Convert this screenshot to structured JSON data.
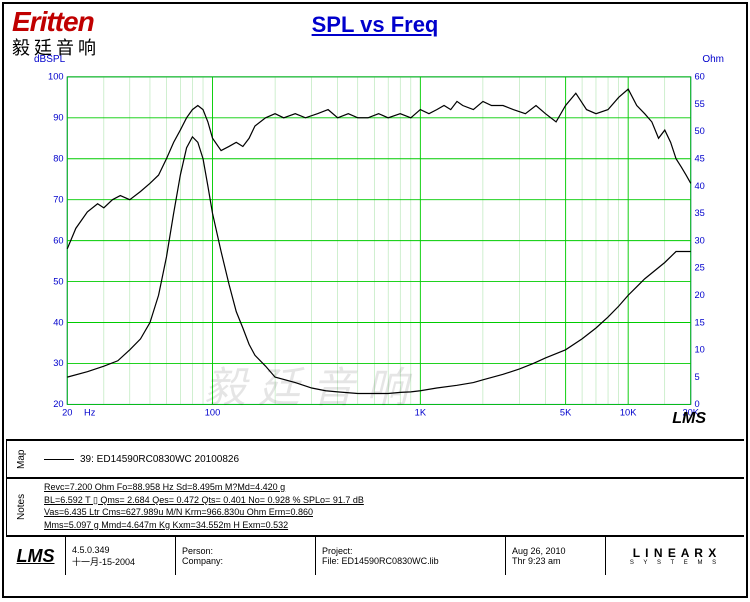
{
  "logo": {
    "main": "Eritten",
    "sub": "毅廷音响"
  },
  "title": "SPL vs Freq",
  "watermark": "毅廷音响",
  "chart_mark": "LMS",
  "axes": {
    "left_unit": "dBSPL",
    "right_unit": "Ohm",
    "x_unit": "Hz",
    "x_min": 20,
    "x_max": 20000,
    "x_scale": "log",
    "x_ticks": [
      20,
      100,
      1000,
      5000,
      10000,
      20000
    ],
    "x_tick_labels": [
      "20",
      "100",
      "1K",
      "5K",
      "10K",
      "20K"
    ],
    "x_minor": [
      30,
      40,
      50,
      60,
      70,
      80,
      90,
      200,
      300,
      400,
      500,
      600,
      700,
      800,
      900,
      2000,
      3000,
      4000,
      6000,
      7000,
      8000,
      9000,
      15000
    ],
    "y_left_min": 20,
    "y_left_max": 100,
    "y_left_step": 10,
    "y_right_min": 0,
    "y_right_max": 60,
    "y_right_step": 5,
    "axis_color": "#0000cc",
    "grid_color": "#00cc00",
    "grid_color_minor": "#99dd99",
    "line_color": "#000000",
    "background_color": "#ffffff",
    "axis_fontsize": 10
  },
  "series": {
    "spl": {
      "type": "line",
      "color": "#000000",
      "points": [
        [
          20,
          58
        ],
        [
          22,
          63
        ],
        [
          25,
          67
        ],
        [
          28,
          69
        ],
        [
          30,
          68
        ],
        [
          33,
          70
        ],
        [
          36,
          71
        ],
        [
          40,
          70
        ],
        [
          45,
          72
        ],
        [
          50,
          74
        ],
        [
          55,
          76
        ],
        [
          60,
          80
        ],
        [
          65,
          84
        ],
        [
          70,
          87
        ],
        [
          75,
          90
        ],
        [
          80,
          92
        ],
        [
          85,
          93
        ],
        [
          90,
          92
        ],
        [
          95,
          89
        ],
        [
          100,
          85
        ],
        [
          110,
          82
        ],
        [
          120,
          83
        ],
        [
          130,
          84
        ],
        [
          140,
          83
        ],
        [
          150,
          85
        ],
        [
          160,
          88
        ],
        [
          180,
          90
        ],
        [
          200,
          91
        ],
        [
          220,
          90
        ],
        [
          250,
          91
        ],
        [
          280,
          90
        ],
        [
          320,
          91
        ],
        [
          360,
          92
        ],
        [
          400,
          90
        ],
        [
          450,
          91
        ],
        [
          500,
          90
        ],
        [
          560,
          90
        ],
        [
          630,
          91
        ],
        [
          700,
          90
        ],
        [
          800,
          91
        ],
        [
          900,
          90
        ],
        [
          1000,
          92
        ],
        [
          1100,
          91
        ],
        [
          1200,
          92
        ],
        [
          1300,
          93
        ],
        [
          1400,
          92
        ],
        [
          1500,
          94
        ],
        [
          1600,
          93
        ],
        [
          1800,
          92
        ],
        [
          2000,
          94
        ],
        [
          2200,
          93
        ],
        [
          2500,
          93
        ],
        [
          2800,
          92
        ],
        [
          3200,
          91
        ],
        [
          3600,
          93
        ],
        [
          4000,
          91
        ],
        [
          4500,
          89
        ],
        [
          5000,
          93
        ],
        [
          5600,
          96
        ],
        [
          6300,
          92
        ],
        [
          7000,
          91
        ],
        [
          8000,
          92
        ],
        [
          9000,
          95
        ],
        [
          10000,
          97
        ],
        [
          11000,
          93
        ],
        [
          12000,
          91
        ],
        [
          13000,
          89
        ],
        [
          14000,
          85
        ],
        [
          15000,
          87
        ],
        [
          16000,
          84
        ],
        [
          17000,
          80
        ],
        [
          18000,
          78
        ],
        [
          19000,
          76
        ],
        [
          20000,
          74
        ]
      ]
    },
    "impedance": {
      "type": "line",
      "color": "#000000",
      "points_right": [
        [
          20,
          5
        ],
        [
          25,
          6
        ],
        [
          30,
          7
        ],
        [
          35,
          8
        ],
        [
          40,
          10
        ],
        [
          45,
          12
        ],
        [
          50,
          15
        ],
        [
          55,
          20
        ],
        [
          60,
          27
        ],
        [
          65,
          35
        ],
        [
          70,
          42
        ],
        [
          75,
          47
        ],
        [
          80,
          49
        ],
        [
          85,
          48
        ],
        [
          90,
          45
        ],
        [
          95,
          40
        ],
        [
          100,
          35
        ],
        [
          110,
          28
        ],
        [
          120,
          22
        ],
        [
          130,
          17
        ],
        [
          140,
          14
        ],
        [
          150,
          11
        ],
        [
          160,
          9
        ],
        [
          180,
          7
        ],
        [
          200,
          5
        ],
        [
          250,
          4
        ],
        [
          300,
          3
        ],
        [
          350,
          2.5
        ],
        [
          400,
          2.3
        ],
        [
          500,
          2
        ],
        [
          600,
          2
        ],
        [
          700,
          2
        ],
        [
          800,
          2.2
        ],
        [
          900,
          2.3
        ],
        [
          1000,
          2.5
        ],
        [
          1200,
          3
        ],
        [
          1500,
          3.5
        ],
        [
          1800,
          4
        ],
        [
          2000,
          4.5
        ],
        [
          2500,
          5.5
        ],
        [
          3000,
          6.5
        ],
        [
          3500,
          7.5
        ],
        [
          4000,
          8.5
        ],
        [
          5000,
          10
        ],
        [
          6000,
          12
        ],
        [
          7000,
          14
        ],
        [
          8000,
          16
        ],
        [
          9000,
          18
        ],
        [
          10000,
          20
        ],
        [
          12000,
          23
        ],
        [
          15000,
          26
        ],
        [
          17000,
          28
        ],
        [
          20000,
          28
        ]
      ]
    }
  },
  "legend": {
    "label": "39: ED14590RC0830WC  20100826"
  },
  "notes": {
    "line1": "Revc=7.200 Ohm  Fo=88.958 Hz  Sd=8.495m M?Md=4.420 g",
    "line2": "BL=6.592 T ▯  Qms= 2.684  Qes= 0.472  Qts= 0.401  No= 0.928 %  SPLo= 91.7 dB",
    "line3": "Vas=6.435 Ltr  Cms=627.989u M/N  Krm=966.830u Ohm  Erm=0.860",
    "line4": "Mms=5.097 g  Mmd=4.647m Kg  Kxm=34.552m H  Exm=0.532"
  },
  "footer": {
    "lms_label": "LMS",
    "version": "4.5.0.349",
    "date_cn": "十一月-15-2004",
    "person_label": "Person:",
    "company_label": "Company:",
    "project_label": "Project:",
    "file_label": "File:",
    "file_value": "ED14590RC0830WC.lib",
    "date": "Aug 26, 2010",
    "time": "Thr  9:23 am",
    "linearx": "L I N E A R X",
    "linearx_sub": "S Y S T E M S"
  },
  "labels": {
    "map": "Map",
    "notes": "Notes"
  }
}
